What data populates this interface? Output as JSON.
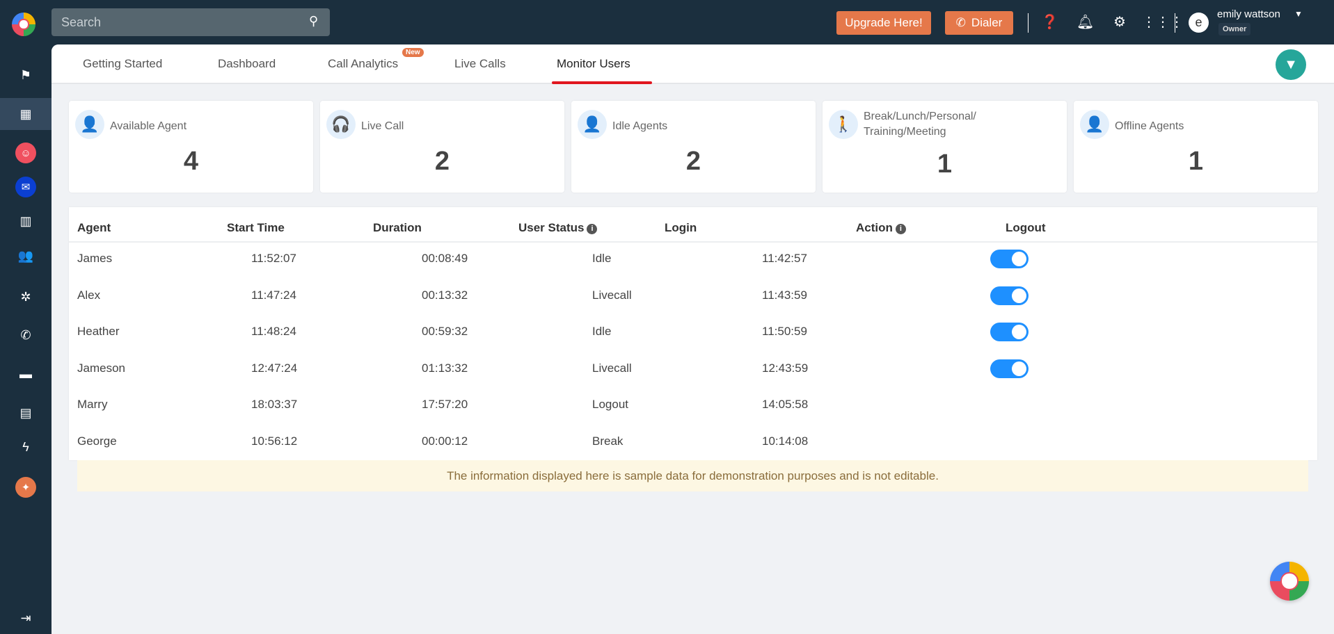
{
  "sidebar": {
    "items": [
      {
        "name": "flag",
        "glyph": "⚑"
      },
      {
        "name": "dashboard",
        "glyph": "▦",
        "active": true
      },
      {
        "name": "bot",
        "glyph": "☺",
        "color": "#f0505f"
      },
      {
        "name": "chat",
        "glyph": "✉",
        "color": "#0b3fd1"
      },
      {
        "name": "building",
        "glyph": "▥"
      },
      {
        "name": "users",
        "glyph": "👥"
      },
      {
        "name": "hub",
        "glyph": "✲"
      },
      {
        "name": "phone-transfer",
        "glyph": "✆"
      },
      {
        "name": "message",
        "glyph": "▬"
      },
      {
        "name": "report",
        "glyph": "▤"
      },
      {
        "name": "flash",
        "glyph": "ϟ"
      },
      {
        "name": "sparkle",
        "glyph": "✦",
        "color": "#e5784a"
      }
    ],
    "logout_glyph": "⇥"
  },
  "search": {
    "placeholder": "Search"
  },
  "topbar": {
    "upgrade_label": "Upgrade Here!",
    "dialer_label": "Dialer",
    "user_name": "emily wattson",
    "user_role": "Owner",
    "avatar_letter": "e"
  },
  "tabs": [
    {
      "label": "Getting Started"
    },
    {
      "label": "Dashboard"
    },
    {
      "label": "Call Analytics",
      "badge": "New"
    },
    {
      "label": "Live Calls"
    },
    {
      "label": "Monitor Users",
      "active": true
    }
  ],
  "cards": [
    {
      "label": "Available Agent",
      "value": "4"
    },
    {
      "label": "Live Call",
      "value": "2"
    },
    {
      "label": "Idle Agents",
      "value": "2"
    },
    {
      "label": "Break/Lunch/Personal/ Training/Meeting",
      "value": "1"
    },
    {
      "label": "Offline Agents",
      "value": "1"
    }
  ],
  "table": {
    "headers": [
      "Agent",
      "Start Time",
      "Duration",
      "User Status",
      "Login",
      "Action",
      "Logout"
    ],
    "rows": [
      {
        "agent": "James",
        "start": "11:52:07",
        "duration": "00:08:49",
        "status": "Idle",
        "login": "11:42:57",
        "logout_toggle": true
      },
      {
        "agent": "Alex",
        "start": "11:47:24",
        "duration": "00:13:32",
        "status": "Livecall",
        "login": "11:43:59",
        "logout_toggle": true
      },
      {
        "agent": "Heather",
        "start": "11:48:24",
        "duration": "00:59:32",
        "status": "Idle",
        "login": "11:50:59",
        "logout_toggle": true
      },
      {
        "agent": "Jameson",
        "start": "12:47:24",
        "duration": "01:13:32",
        "status": "Livecall",
        "login": "12:43:59",
        "logout_toggle": true
      },
      {
        "agent": "Marry",
        "start": "18:03:37",
        "duration": "17:57:20",
        "status": "Logout",
        "login": "14:05:58",
        "logout_toggle": false
      },
      {
        "agent": "George",
        "start": "10:56:12",
        "duration": "00:00:12",
        "status": "Break",
        "login": "10:14:08",
        "logout_toggle": false
      }
    ]
  },
  "notice": "The information displayed here is sample data for demonstration purposes and is not editable.",
  "colors": {
    "accent_orange": "#e5784a",
    "toggle_blue": "#1e90ff",
    "filter_teal": "#26a69a",
    "nav_bg": "#1b2f3e",
    "tab_underline": "#e0161f"
  }
}
